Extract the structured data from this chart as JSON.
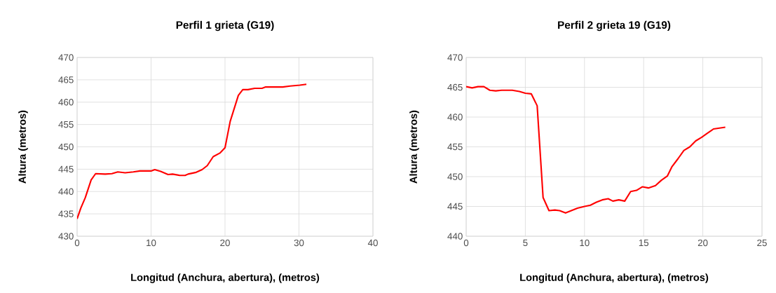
{
  "chart_data": [
    {
      "type": "line",
      "title": "Perfil 1 grieta (G19)",
      "xlabel": "Longitud (Anchura, abertura), (metros)",
      "ylabel": "Altura (metros)",
      "x": [
        0,
        0.5,
        1.1,
        1.9,
        2.5,
        3.8,
        4.7,
        5.5,
        6.5,
        7.6,
        8.5,
        10,
        10.5,
        11.3,
        12.3,
        12.9,
        13.9,
        14.6,
        15,
        16.1,
        16.9,
        17.6,
        18.4,
        19.3,
        20,
        20.7,
        21.8,
        22.4,
        23.1,
        24,
        25,
        25.5,
        27.8,
        28.8,
        30.1,
        31
      ],
      "series": [
        {
          "color": "#ff0000",
          "values": [
            433.9,
            436.3,
            438.6,
            442.6,
            444.0,
            443.9,
            444.0,
            444.4,
            444.2,
            444.4,
            444.6,
            444.6,
            444.9,
            444.5,
            443.8,
            443.9,
            443.6,
            443.6,
            443.9,
            444.3,
            444.9,
            445.8,
            447.8,
            448.6,
            449.8,
            455.7,
            461.5,
            462.8,
            462.8,
            463.1,
            463.1,
            463.4,
            463.4,
            463.6,
            463.8,
            464.0
          ]
        }
      ],
      "xlim": [
        0,
        40
      ],
      "ylim": [
        430,
        470
      ],
      "xticks": [
        0,
        10,
        20,
        30,
        40
      ],
      "yticks": [
        430,
        435,
        440,
        445,
        450,
        455,
        460,
        465,
        470
      ],
      "grid": true
    },
    {
      "type": "line",
      "title": "Perfil 2 grieta 19 (G19)",
      "xlabel": "Longitud (Anchura, abertura), (metros)",
      "ylabel": "Altura (metros)",
      "x": [
        0,
        0.5,
        1.0,
        1.5,
        2.0,
        2.5,
        3.0,
        3.9,
        4.5,
        5.0,
        5.5,
        6.0,
        6.5,
        7.0,
        7.5,
        7.9,
        8.4,
        9.4,
        10.0,
        10.5,
        11.0,
        11.5,
        12.0,
        12.4,
        12.9,
        13.4,
        13.9,
        14.4,
        14.9,
        15.4,
        16.0,
        16.5,
        17.0,
        17.4,
        17.9,
        18.4,
        18.9,
        19.4,
        19.9,
        20.4,
        20.9,
        21.9
      ],
      "series": [
        {
          "color": "#ff0000",
          "values": [
            465.1,
            464.9,
            465.1,
            465.1,
            464.5,
            464.4,
            464.5,
            464.5,
            464.3,
            464.0,
            463.9,
            461.9,
            446.5,
            444.3,
            444.4,
            444.3,
            443.9,
            444.7,
            445.0,
            445.2,
            445.7,
            446.1,
            446.3,
            445.9,
            446.1,
            445.9,
            447.5,
            447.7,
            448.3,
            448.1,
            448.5,
            449.4,
            450.1,
            451.7,
            453.0,
            454.4,
            455.0,
            456.0,
            456.6,
            457.3,
            458.0,
            458.3
          ]
        }
      ],
      "xlim": [
        0,
        25
      ],
      "ylim": [
        440,
        470
      ],
      "xticks": [
        0,
        5,
        10,
        15,
        20,
        25
      ],
      "yticks": [
        440,
        445,
        450,
        455,
        460,
        465,
        470
      ],
      "grid": true
    }
  ]
}
